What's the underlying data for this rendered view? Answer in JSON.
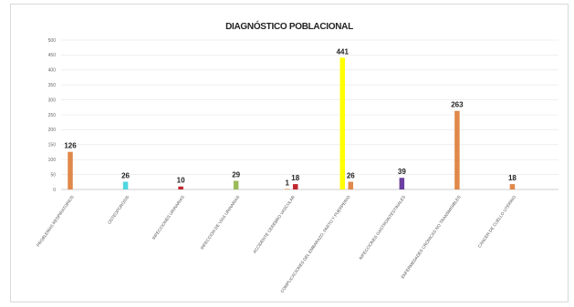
{
  "chart_data": {
    "type": "bar",
    "title": "DIAGNÓSTICO POBLACIONAL",
    "xlabel": "",
    "ylabel": "",
    "ylim": [
      0,
      500
    ],
    "yticks": [
      0,
      50,
      100,
      150,
      200,
      250,
      300,
      350,
      400,
      450,
      500
    ],
    "grid": true,
    "categories": [
      "PROBLEMAS RESPIRATORIOS",
      "OSTEOPOROSIS",
      "INFECCIONES URINARIAS",
      "INFECCIÓN DE VÍAS URINARIAS",
      "ACCIDENTE CEREBRO VASCULAR",
      "COMPLICACIONES DEL EMBARAZO, PARTO Y PUERPERIO",
      "INFECCIONES GASTROINTESTINALES",
      "ENFERMEDADES CRÓNICAS NO TRANSMISIBLES",
      "CÁNCER DE CUELLO UTERINO"
    ],
    "bars": [
      {
        "group": 0,
        "value": 126,
        "label": "126",
        "color": "#e0894a"
      },
      {
        "group": 1,
        "value": 26,
        "label": "26",
        "color": "#4fd6e0"
      },
      {
        "group": 2,
        "value": 10,
        "label": "10",
        "color": "#c0272d"
      },
      {
        "group": 3,
        "value": 29,
        "label": "29",
        "color": "#9bbb59"
      },
      {
        "group": 4,
        "value": 1,
        "label": "1",
        "color": "#e0894a"
      },
      {
        "group": 4,
        "value": 18,
        "label": "18",
        "color": "#c0272d"
      },
      {
        "group": 5,
        "value": 441,
        "label": "441",
        "color": "#ffff00"
      },
      {
        "group": 5,
        "value": 26,
        "label": "26",
        "color": "#e0894a"
      },
      {
        "group": 6,
        "value": 39,
        "label": "39",
        "color": "#6b3fa0"
      },
      {
        "group": 7,
        "value": 263,
        "label": "263",
        "color": "#e0894a"
      },
      {
        "group": 8,
        "value": 18,
        "label": "18",
        "color": "#e0894a"
      }
    ]
  }
}
